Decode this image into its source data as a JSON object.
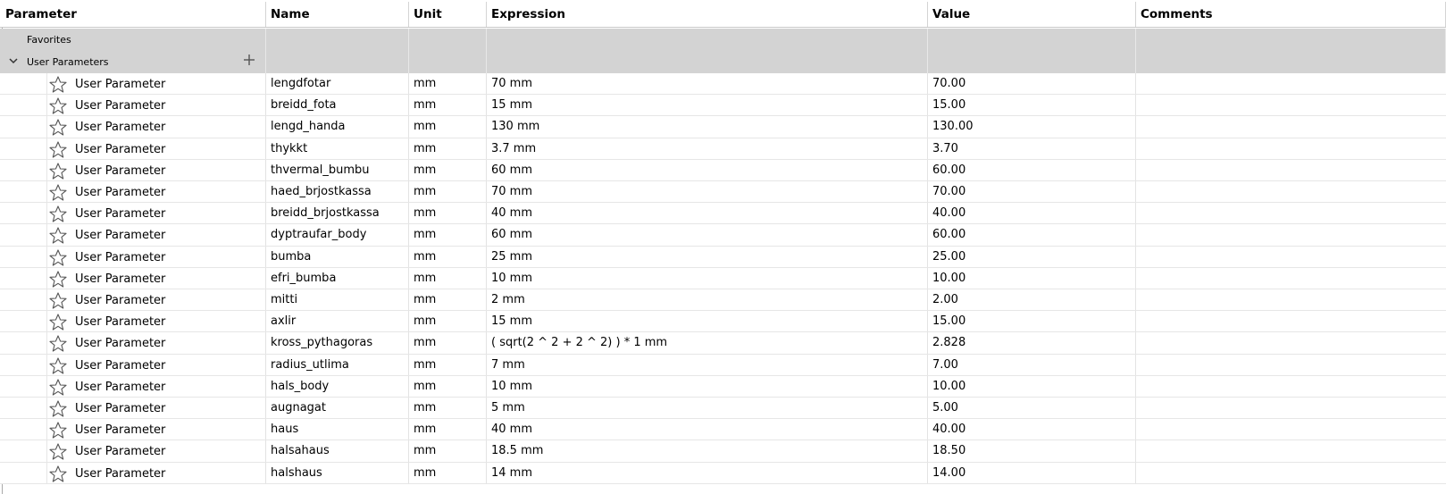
{
  "columns": {
    "parameter": "Parameter",
    "name": "Name",
    "unit": "Unit",
    "expression": "Expression",
    "value": "Value",
    "comments": "Comments"
  },
  "groups": {
    "favorites": "Favorites",
    "user_parameters": "User Parameters"
  },
  "icons": {
    "expand": "chevron-down-icon",
    "add": "plus-icon",
    "favorite": "star-outline-icon"
  },
  "colors": {
    "group_row_bg": "#d3d3d3",
    "grid_line": "#e3e3e3"
  },
  "rows": [
    {
      "param": "User Parameter",
      "name": "lengdfotar",
      "unit": "mm",
      "expression": "70 mm",
      "value": "70.00",
      "comment": ""
    },
    {
      "param": "User Parameter",
      "name": "breidd_fota",
      "unit": "mm",
      "expression": "15 mm",
      "value": "15.00",
      "comment": ""
    },
    {
      "param": "User Parameter",
      "name": "lengd_handa",
      "unit": "mm",
      "expression": "130 mm",
      "value": "130.00",
      "comment": ""
    },
    {
      "param": "User Parameter",
      "name": "thykkt",
      "unit": "mm",
      "expression": "3.7 mm",
      "value": "3.70",
      "comment": ""
    },
    {
      "param": "User Parameter",
      "name": "thvermal_bumbu",
      "unit": "mm",
      "expression": "60 mm",
      "value": "60.00",
      "comment": ""
    },
    {
      "param": "User Parameter",
      "name": "haed_brjostkassa",
      "unit": "mm",
      "expression": "70 mm",
      "value": "70.00",
      "comment": ""
    },
    {
      "param": "User Parameter",
      "name": "breidd_brjostkassa",
      "unit": "mm",
      "expression": "40 mm",
      "value": "40.00",
      "comment": ""
    },
    {
      "param": "User Parameter",
      "name": "dyptraufar_body",
      "unit": "mm",
      "expression": "60 mm",
      "value": "60.00",
      "comment": ""
    },
    {
      "param": "User Parameter",
      "name": "bumba",
      "unit": "mm",
      "expression": "25 mm",
      "value": "25.00",
      "comment": ""
    },
    {
      "param": "User Parameter",
      "name": "efri_bumba",
      "unit": "mm",
      "expression": "10 mm",
      "value": "10.00",
      "comment": ""
    },
    {
      "param": "User Parameter",
      "name": "mitti",
      "unit": "mm",
      "expression": "2 mm",
      "value": "2.00",
      "comment": ""
    },
    {
      "param": "User Parameter",
      "name": "axlir",
      "unit": "mm",
      "expression": "15 mm",
      "value": "15.00",
      "comment": ""
    },
    {
      "param": "User Parameter",
      "name": "kross_pythagoras",
      "unit": "mm",
      "expression": "( sqrt(2 ^ 2 + 2 ^ 2) ) * 1 mm",
      "value": "2.828",
      "comment": ""
    },
    {
      "param": "User Parameter",
      "name": "radius_utlima",
      "unit": "mm",
      "expression": "7 mm",
      "value": "7.00",
      "comment": ""
    },
    {
      "param": "User Parameter",
      "name": "hals_body",
      "unit": "mm",
      "expression": "10 mm",
      "value": "10.00",
      "comment": ""
    },
    {
      "param": "User Parameter",
      "name": "augnagat",
      "unit": "mm",
      "expression": "5 mm",
      "value": "5.00",
      "comment": ""
    },
    {
      "param": "User Parameter",
      "name": "haus",
      "unit": "mm",
      "expression": "40 mm",
      "value": "40.00",
      "comment": ""
    },
    {
      "param": "User Parameter",
      "name": "halsahaus",
      "unit": "mm",
      "expression": "18.5 mm",
      "value": "18.50",
      "comment": ""
    },
    {
      "param": "User Parameter",
      "name": "halshaus",
      "unit": "mm",
      "expression": "14 mm",
      "value": "14.00",
      "comment": ""
    }
  ]
}
